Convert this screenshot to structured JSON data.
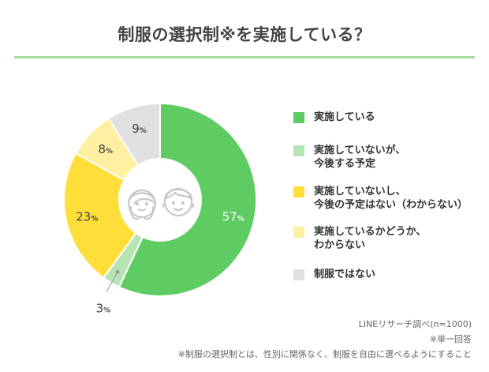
{
  "colors": {
    "green": "#5ECB63",
    "lightgreen": "#B6E5B3",
    "yellow": "#FFDE3A",
    "lightyellow": "#FFEFA0",
    "gray": "#E0E0E0",
    "rule": "#A6DD9F"
  },
  "chart_data": {
    "type": "pie",
    "title": "制服の選択制※を実施している？",
    "slices": [
      {
        "label": "実施している",
        "value": 57,
        "value_label": "57",
        "unit": "%",
        "color": "#5ECB63"
      },
      {
        "label": "実施していないが、今後する予定",
        "value": 3,
        "value_label": "3",
        "unit": "%",
        "color": "#B6E5B3"
      },
      {
        "label": "実施していないし、今後の予定はない（わからない）",
        "value": 23,
        "value_label": "23",
        "unit": "%",
        "color": "#FFDE3A"
      },
      {
        "label": "実施しているかどうか、わからない",
        "value": 8,
        "value_label": "8",
        "unit": "%",
        "color": "#FFEFA0"
      },
      {
        "label": "制服ではない",
        "value": 9,
        "value_label": "9",
        "unit": "%",
        "color": "#E0E0E0"
      }
    ]
  },
  "legend": [
    {
      "lines": [
        "実施している"
      ]
    },
    {
      "lines": [
        "実施していないが、",
        "今後する予定"
      ]
    },
    {
      "lines": [
        "実施していないし、",
        "今後の予定はない（わからない）"
      ]
    },
    {
      "lines": [
        "実施しているかどうか、",
        "わからない"
      ]
    },
    {
      "lines": [
        "制服ではない"
      ]
    }
  ],
  "footnotes": {
    "source": "LINEリサーチ調べ(n=1000)",
    "single": "※単一回答",
    "definition": "※制服の選択制とは、性別に関係なく、制服を自由に選べるようにすること"
  }
}
